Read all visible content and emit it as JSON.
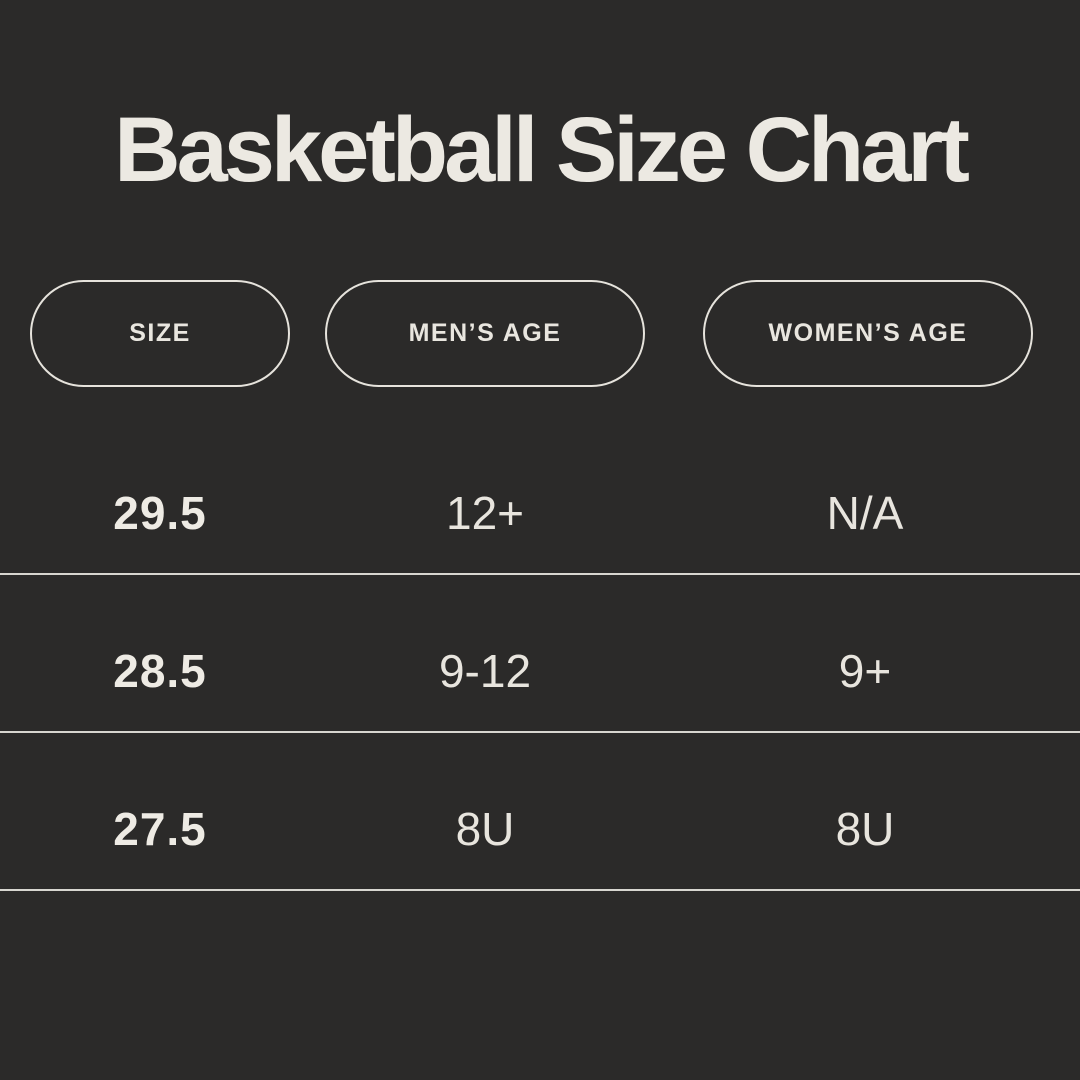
{
  "title": "Basketball Size Chart",
  "colors": {
    "background": "#2b2a29",
    "text_cream": "#ece9e2",
    "pill_border": "#e6e3dc",
    "divider_line": "#d8d6d0"
  },
  "chart_data": {
    "type": "table",
    "title": "Basketball Size Chart",
    "columns": [
      "SIZE",
      "MEN’S AGE",
      "WOMEN’S AGE"
    ],
    "rows": [
      [
        "29.5",
        "12+",
        "N/A"
      ],
      [
        "28.5",
        "9-12",
        "9+"
      ],
      [
        "27.5",
        "8U",
        "8U"
      ]
    ]
  }
}
